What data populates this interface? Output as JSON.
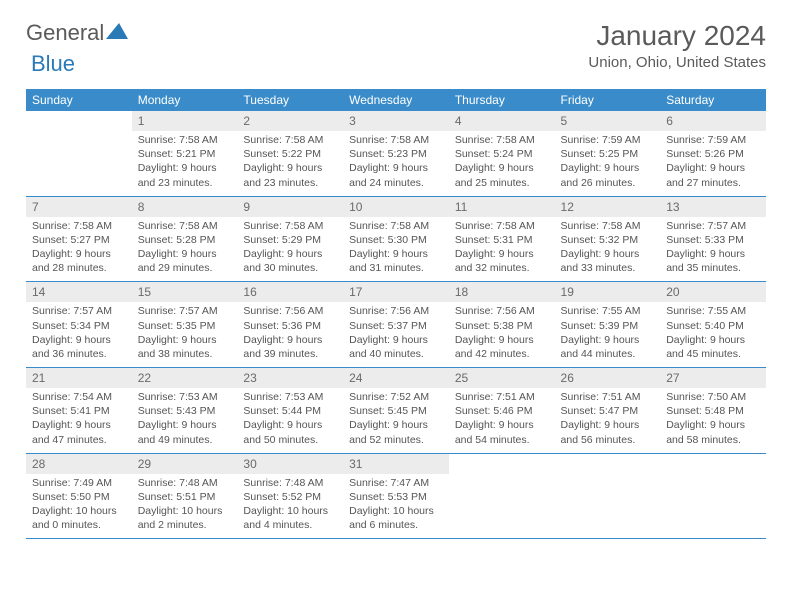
{
  "logo": {
    "name": "General",
    "sub": "Blue"
  },
  "header": {
    "month_title": "January 2024",
    "location": "Union, Ohio, United States"
  },
  "dayheads": [
    "Sunday",
    "Monday",
    "Tuesday",
    "Wednesday",
    "Thursday",
    "Friday",
    "Saturday"
  ],
  "colors": {
    "dayhead_bg": "#3a8bc9",
    "dayhead_fg": "#ffffff",
    "daynum_bg": "#ececec",
    "border": "#3a8bc9",
    "text": "#555555"
  },
  "weeks": [
    [
      {
        "empty": true
      },
      {
        "num": "1",
        "sunrise": "7:58 AM",
        "sunset": "5:21 PM",
        "daylight": "9 hours and 23 minutes."
      },
      {
        "num": "2",
        "sunrise": "7:58 AM",
        "sunset": "5:22 PM",
        "daylight": "9 hours and 23 minutes."
      },
      {
        "num": "3",
        "sunrise": "7:58 AM",
        "sunset": "5:23 PM",
        "daylight": "9 hours and 24 minutes."
      },
      {
        "num": "4",
        "sunrise": "7:58 AM",
        "sunset": "5:24 PM",
        "daylight": "9 hours and 25 minutes."
      },
      {
        "num": "5",
        "sunrise": "7:59 AM",
        "sunset": "5:25 PM",
        "daylight": "9 hours and 26 minutes."
      },
      {
        "num": "6",
        "sunrise": "7:59 AM",
        "sunset": "5:26 PM",
        "daylight": "9 hours and 27 minutes."
      }
    ],
    [
      {
        "num": "7",
        "sunrise": "7:58 AM",
        "sunset": "5:27 PM",
        "daylight": "9 hours and 28 minutes."
      },
      {
        "num": "8",
        "sunrise": "7:58 AM",
        "sunset": "5:28 PM",
        "daylight": "9 hours and 29 minutes."
      },
      {
        "num": "9",
        "sunrise": "7:58 AM",
        "sunset": "5:29 PM",
        "daylight": "9 hours and 30 minutes."
      },
      {
        "num": "10",
        "sunrise": "7:58 AM",
        "sunset": "5:30 PM",
        "daylight": "9 hours and 31 minutes."
      },
      {
        "num": "11",
        "sunrise": "7:58 AM",
        "sunset": "5:31 PM",
        "daylight": "9 hours and 32 minutes."
      },
      {
        "num": "12",
        "sunrise": "7:58 AM",
        "sunset": "5:32 PM",
        "daylight": "9 hours and 33 minutes."
      },
      {
        "num": "13",
        "sunrise": "7:57 AM",
        "sunset": "5:33 PM",
        "daylight": "9 hours and 35 minutes."
      }
    ],
    [
      {
        "num": "14",
        "sunrise": "7:57 AM",
        "sunset": "5:34 PM",
        "daylight": "9 hours and 36 minutes."
      },
      {
        "num": "15",
        "sunrise": "7:57 AM",
        "sunset": "5:35 PM",
        "daylight": "9 hours and 38 minutes."
      },
      {
        "num": "16",
        "sunrise": "7:56 AM",
        "sunset": "5:36 PM",
        "daylight": "9 hours and 39 minutes."
      },
      {
        "num": "17",
        "sunrise": "7:56 AM",
        "sunset": "5:37 PM",
        "daylight": "9 hours and 40 minutes."
      },
      {
        "num": "18",
        "sunrise": "7:56 AM",
        "sunset": "5:38 PM",
        "daylight": "9 hours and 42 minutes."
      },
      {
        "num": "19",
        "sunrise": "7:55 AM",
        "sunset": "5:39 PM",
        "daylight": "9 hours and 44 minutes."
      },
      {
        "num": "20",
        "sunrise": "7:55 AM",
        "sunset": "5:40 PM",
        "daylight": "9 hours and 45 minutes."
      }
    ],
    [
      {
        "num": "21",
        "sunrise": "7:54 AM",
        "sunset": "5:41 PM",
        "daylight": "9 hours and 47 minutes."
      },
      {
        "num": "22",
        "sunrise": "7:53 AM",
        "sunset": "5:43 PM",
        "daylight": "9 hours and 49 minutes."
      },
      {
        "num": "23",
        "sunrise": "7:53 AM",
        "sunset": "5:44 PM",
        "daylight": "9 hours and 50 minutes."
      },
      {
        "num": "24",
        "sunrise": "7:52 AM",
        "sunset": "5:45 PM",
        "daylight": "9 hours and 52 minutes."
      },
      {
        "num": "25",
        "sunrise": "7:51 AM",
        "sunset": "5:46 PM",
        "daylight": "9 hours and 54 minutes."
      },
      {
        "num": "26",
        "sunrise": "7:51 AM",
        "sunset": "5:47 PM",
        "daylight": "9 hours and 56 minutes."
      },
      {
        "num": "27",
        "sunrise": "7:50 AM",
        "sunset": "5:48 PM",
        "daylight": "9 hours and 58 minutes."
      }
    ],
    [
      {
        "num": "28",
        "sunrise": "7:49 AM",
        "sunset": "5:50 PM",
        "daylight": "10 hours and 0 minutes."
      },
      {
        "num": "29",
        "sunrise": "7:48 AM",
        "sunset": "5:51 PM",
        "daylight": "10 hours and 2 minutes."
      },
      {
        "num": "30",
        "sunrise": "7:48 AM",
        "sunset": "5:52 PM",
        "daylight": "10 hours and 4 minutes."
      },
      {
        "num": "31",
        "sunrise": "7:47 AM",
        "sunset": "5:53 PM",
        "daylight": "10 hours and 6 minutes."
      },
      {
        "empty": true
      },
      {
        "empty": true
      },
      {
        "empty": true
      }
    ]
  ],
  "labels": {
    "sunrise": "Sunrise:",
    "sunset": "Sunset:",
    "daylight": "Daylight:"
  }
}
